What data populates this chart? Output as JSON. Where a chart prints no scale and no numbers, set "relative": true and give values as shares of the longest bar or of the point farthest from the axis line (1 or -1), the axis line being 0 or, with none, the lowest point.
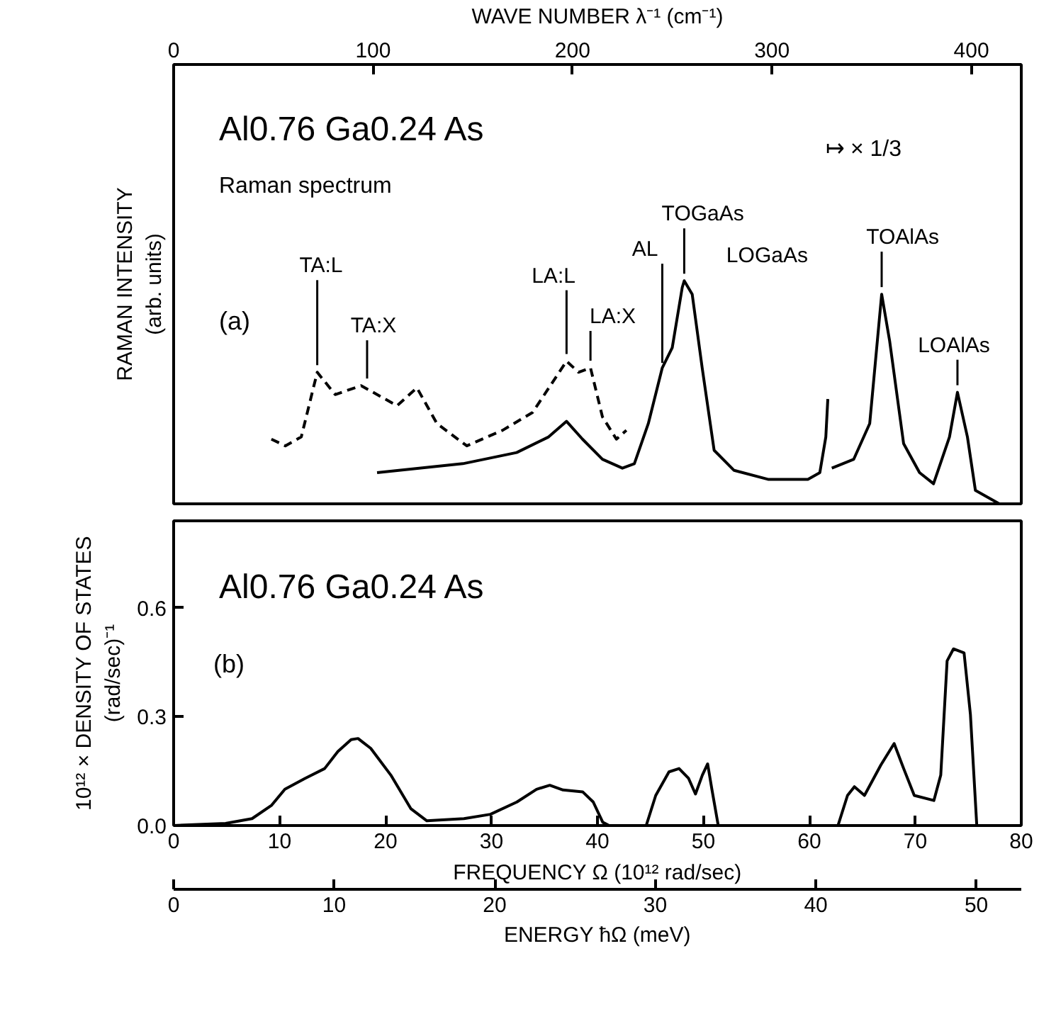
{
  "chart_data": [
    {
      "type": "line",
      "relative": true,
      "xlim": [
        0,
        425
      ],
      "xticks": [
        0,
        100,
        200,
        300,
        400
      ],
      "xlabel": "WAVE NUMBER λ⁻¹ (cm⁻¹)",
      "ylabel": "RAMAN INTENSITY\n(arb. units)",
      "annotations": [
        "Al0.76 Ga0.24 As",
        "Raman spectrum",
        "(a)",
        "↦ × 1/3",
        {
          "text": "TA:L",
          "x": 72,
          "y": 0.59
        },
        {
          "text": "TA:X",
          "x": 97,
          "y": 0.53
        },
        {
          "text": "LA:L",
          "x": 197,
          "y": 0.64
        },
        {
          "text": "LA:X",
          "x": 209,
          "y": 0.61
        },
        {
          "text": "AL",
          "x": 245,
          "y": 0.6
        },
        {
          "text": "TOGaAs",
          "x": 256,
          "y": 1.0
        },
        {
          "text": "LOGaAs",
          "x": 260,
          "y": 0.94
        },
        {
          "text": "TOAlAs",
          "x": 355,
          "y": 0.94
        },
        {
          "text": "LOAlAs",
          "x": 393,
          "y": 0.5
        }
      ],
      "series": [
        {
          "color": "#000000",
          "line_style": "dashed",
          "x": [
            49,
            56,
            64,
            72,
            81,
            94,
            112,
            122,
            132,
            147,
            165,
            180,
            197,
            203,
            209,
            215,
            222,
            227
          ],
          "values": [
            0.29,
            0.26,
            0.3,
            0.59,
            0.49,
            0.53,
            0.44,
            0.52,
            0.36,
            0.26,
            0.33,
            0.41,
            0.64,
            0.59,
            0.61,
            0.39,
            0.29,
            0.33
          ]
        },
        {
          "color": "#000000",
          "x": [
            102,
            145,
            172,
            188,
            197,
            205,
            215,
            225,
            231,
            238,
            245,
            250,
            255,
            256,
            260,
            265,
            271,
            281,
            298,
            318,
            324,
            327,
            328,
            329,
            330,
            341,
            349,
            355,
            359,
            366,
            374,
            381,
            389,
            393,
            398,
            402,
            414
          ],
          "values": [
            0.14,
            0.18,
            0.23,
            0.3,
            0.37,
            0.29,
            0.2,
            0.16,
            0.18,
            0.36,
            0.61,
            0.7,
            0.97,
            1.0,
            0.94,
            0.61,
            0.24,
            0.15,
            0.11,
            0.11,
            0.14,
            0.3,
            0.47,
            null,
            0.16,
            0.2,
            0.36,
            0.94,
            0.73,
            0.27,
            0.14,
            0.09,
            0.3,
            0.5,
            0.3,
            0.06,
            0.0
          ]
        }
      ]
    },
    {
      "type": "line",
      "xlim": [
        0,
        80
      ],
      "xticks": [
        0,
        10,
        20,
        30,
        40,
        50,
        60,
        70,
        80
      ],
      "xlabel": "FREQUENCY Ω (10¹² rad/sec)",
      "ylim": [
        0,
        0.84
      ],
      "yticks": [
        {
          "value": 0,
          "label": "0.0"
        },
        0.3,
        0.6
      ],
      "ylabel": "10¹² × DENSITY OF STATES\n(rad/sec)⁻¹",
      "x2lim": [
        0,
        52.8
      ],
      "x2ticks": [
        0,
        10,
        20,
        30,
        40,
        50
      ],
      "x2label": "ENERGY ħΩ (meV)",
      "annotations": [
        "Al0.76 Ga0.24 As",
        "(b)"
      ],
      "series": [
        {
          "color": "#000000",
          "x": [
            0,
            4.9,
            7.4,
            9.25,
            10.5,
            12.4,
            14.25,
            15.5,
            16.75,
            17.4,
            18.6,
            20.5,
            22.4,
            23.9,
            27.4,
            29.9,
            32.4,
            34.25,
            35.5,
            36.75,
            38.6,
            39.6,
            40.5,
            41.1,
            44.6,
            45.5,
            46.75,
            47.7,
            48.6,
            49.25,
            49.9,
            50.4,
            50.8,
            51.4,
            62.7,
            63.6,
            64.25,
            65.2,
            66.75,
            68.0,
            68.9,
            69.9,
            71.75,
            72.4,
            73.0,
            73.6,
            74.6,
            75.2,
            75.8
          ],
          "values": [
            0,
            0.006,
            0.019,
            0.056,
            0.1,
            0.13,
            0.157,
            0.204,
            0.237,
            0.24,
            0.213,
            0.139,
            0.046,
            0.013,
            0.019,
            0.031,
            0.065,
            0.1,
            0.111,
            0.098,
            0.093,
            0.065,
            0.009,
            0,
            0,
            0.083,
            0.148,
            0.157,
            0.13,
            0.087,
            0.139,
            0.17,
            0.1,
            0,
            0,
            0.083,
            0.107,
            0.083,
            0.167,
            0.226,
            0.157,
            0.083,
            0.069,
            0.139,
            0.454,
            0.487,
            0.476,
            0.306,
            0
          ]
        }
      ]
    }
  ]
}
